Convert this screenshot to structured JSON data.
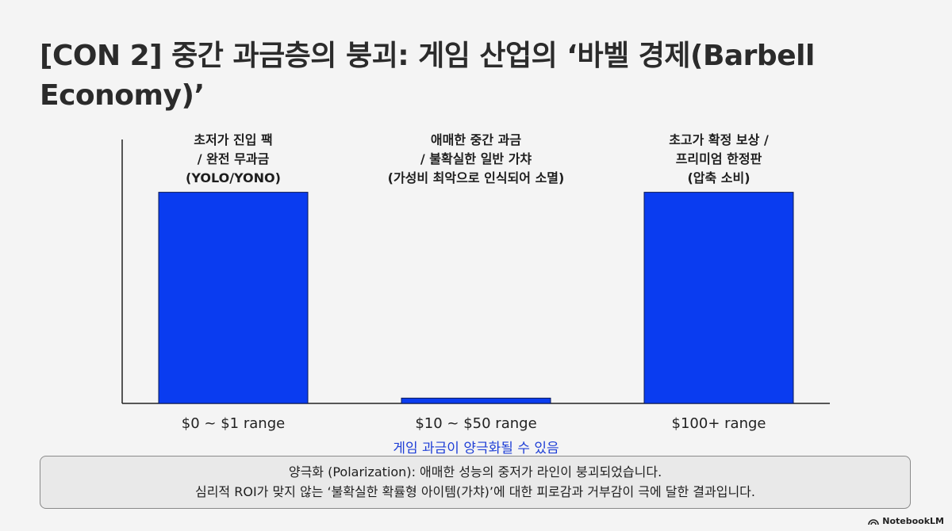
{
  "title": "[CON 2] 중간 과금층의 붕괴: 게임 산업의 ‘바벨 경제(Barbell Economy)’",
  "chart_data": {
    "type": "bar",
    "categories": [
      "$0 ~ $1 range",
      "$10 ~ $50 range",
      "$100+ range"
    ],
    "values": [
      0.8,
      0.02,
      0.8
    ],
    "bar_labels": [
      [
        "초저가 진입 팩",
        "/ 완전 무과금",
        "(YOLO/YONO)"
      ],
      [
        "애매한 중간 과금",
        "/ 불확실한 일반 가챠",
        "(가성비 최악으로 인식되어 소멸)"
      ],
      [
        "초고가 확정 보상 /",
        "프리미엄 한정판",
        "(압축 소비)"
      ]
    ],
    "ylim": [
      0,
      1
    ],
    "bar_color": "#0a3cf0",
    "grid": false
  },
  "annotation": "게임 과금이 양극화될 수 있음",
  "annotation_color": "#1f3fd6",
  "note": {
    "line1": "양극화 (Polarization): 애매한 성능의 중저가 라인이 붕괴되었습니다.",
    "line2": "심리적 ROI가 맞지 않는 ‘불확실한 확률형 아이템(가챠)’에 대한 피로감과 거부감이 극에 달한 결과입니다."
  },
  "brand": "NotebookLM"
}
